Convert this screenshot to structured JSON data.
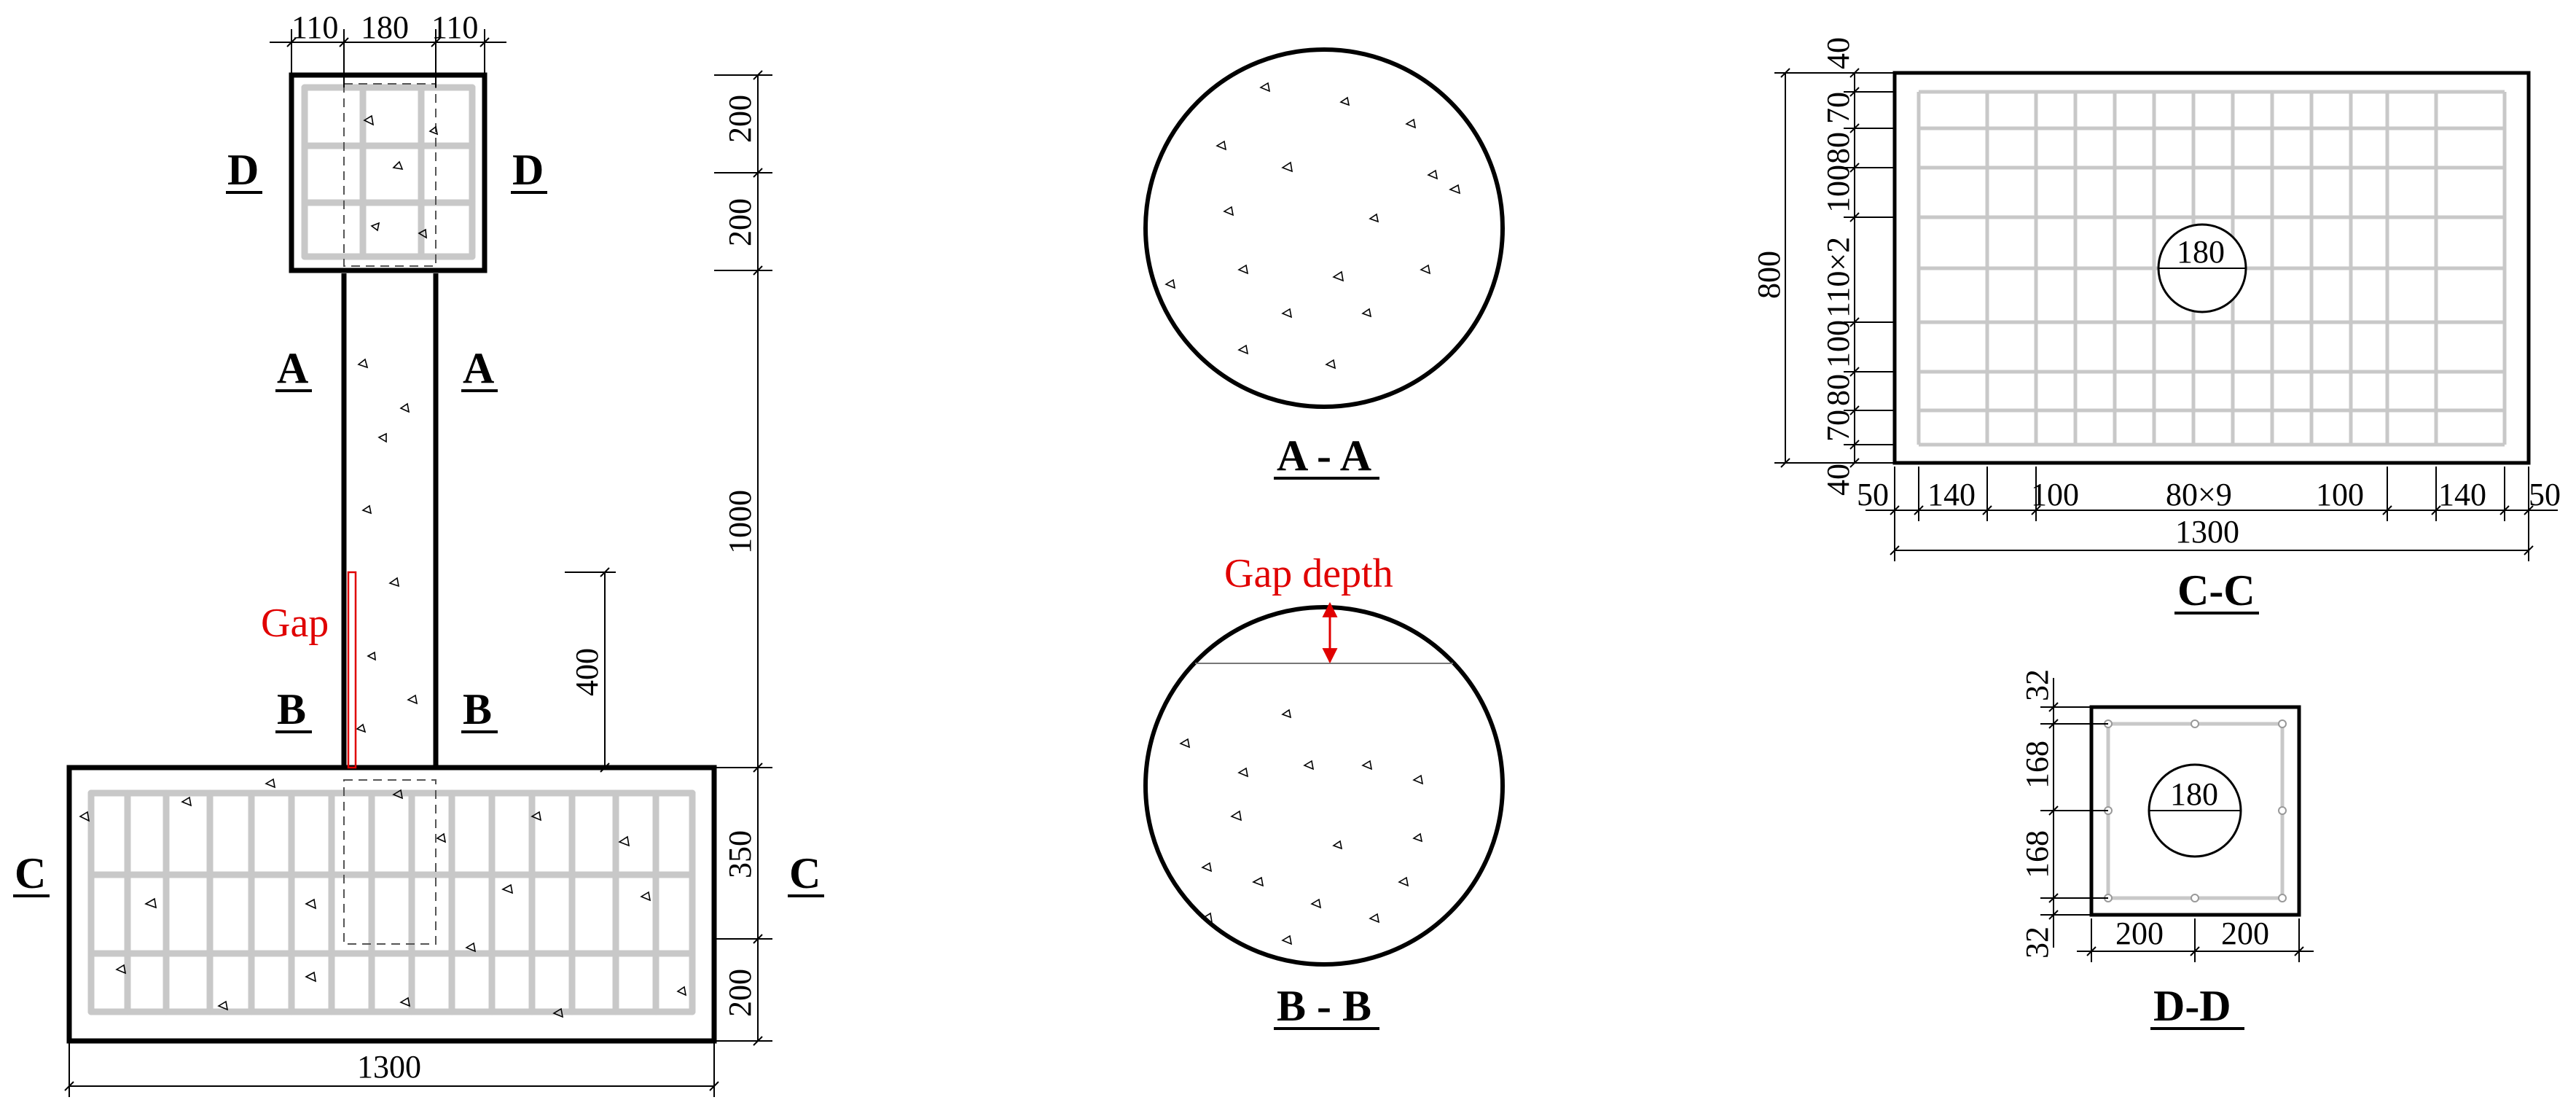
{
  "elevation": {
    "labels": {
      "A": "A",
      "B": "B",
      "C": "C",
      "D": "D"
    },
    "gap_label": "Gap",
    "dims": {
      "top_left": "110",
      "top_mid": "180",
      "top_right": "110",
      "cap_upper": "200",
      "cap_lower": "200",
      "column": "1000",
      "gap_height": "400",
      "base_upper": "350",
      "base_lower": "200",
      "base_width": "1300"
    }
  },
  "section_aa": {
    "title": "A - A"
  },
  "section_bb": {
    "title": "B - B",
    "gap_depth_label": "Gap depth"
  },
  "section_cc": {
    "title": "C-C",
    "hole": "180",
    "width_total": "1300",
    "width_dims": [
      "50",
      "140",
      "100",
      "80×9",
      "100",
      "140",
      "50"
    ],
    "height_total": "800",
    "height_dims": [
      "40",
      "70",
      "80",
      "100",
      "110×2",
      "100",
      "80",
      "70",
      "40"
    ]
  },
  "section_dd": {
    "title": "D-D",
    "hole": "180",
    "width_dims": [
      "200",
      "200"
    ],
    "height_dims": [
      "32",
      "168",
      "168",
      "32"
    ]
  }
}
